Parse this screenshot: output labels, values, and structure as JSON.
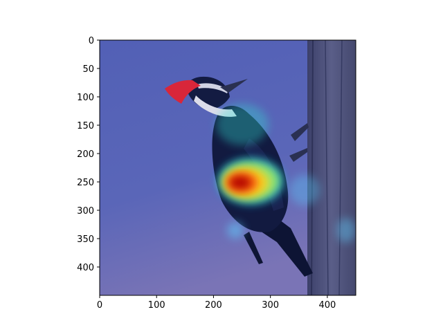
{
  "figure": {
    "type": "image-with-heatmap-overlay",
    "colormap": "jet",
    "image_extent": {
      "x": [
        0,
        450
      ],
      "y": [
        0,
        450
      ]
    },
    "background_color": "#ffffff"
  },
  "chart_data": {
    "type": "heatmap",
    "title": "",
    "xlabel": "",
    "ylabel": "",
    "xlim": [
      0,
      450
    ],
    "ylim": [
      450,
      0
    ],
    "x_ticks": [
      0,
      100,
      200,
      300,
      400
    ],
    "x_tick_labels": [
      "0",
      "100",
      "200",
      "300",
      "400"
    ],
    "y_ticks": [
      0,
      50,
      100,
      150,
      200,
      250,
      300,
      350,
      400
    ],
    "y_tick_labels": [
      "0",
      "50",
      "100",
      "150",
      "200",
      "250",
      "300",
      "350",
      "400"
    ],
    "grid": false,
    "hotspots": [
      {
        "x": 250,
        "y": 245,
        "intensity": 1.0
      },
      {
        "x": 245,
        "y": 145,
        "intensity": 0.45
      },
      {
        "x": 360,
        "y": 270,
        "intensity": 0.3
      },
      {
        "x": 240,
        "y": 335,
        "intensity": 0.3
      },
      {
        "x": 430,
        "y": 335,
        "intensity": 0.25
      }
    ]
  },
  "subject": {
    "description_icon": "woodpecker-icon",
    "crest_color": "#d8263a",
    "body_color": "#10183a",
    "trunk_color": "#4c5078"
  }
}
